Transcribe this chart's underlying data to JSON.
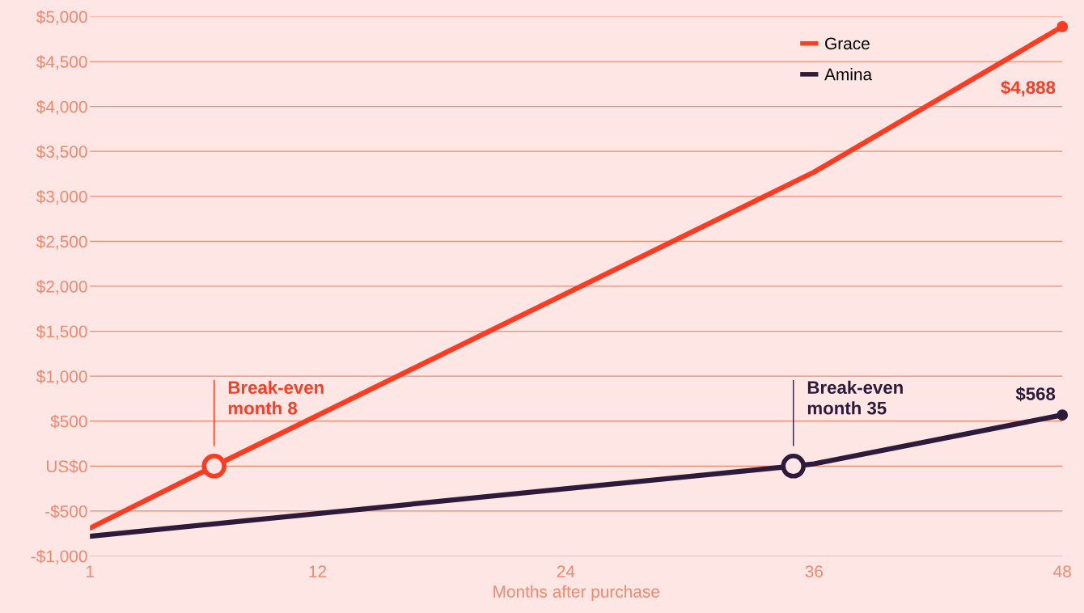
{
  "chart_data": {
    "type": "line",
    "xlabel": "Months after purchase",
    "xlim": [
      1,
      48
    ],
    "xticks": [
      1,
      12,
      24,
      36,
      48
    ],
    "ylim": [
      -1000,
      5000
    ],
    "yticks": [
      {
        "value": -1000,
        "label": "-$1,000"
      },
      {
        "value": -500,
        "label": "-$500"
      },
      {
        "value": 0,
        "label": "US$0"
      },
      {
        "value": 500,
        "label": "$500"
      },
      {
        "value": 1000,
        "label": "$1,000"
      },
      {
        "value": 1500,
        "label": "$1,500"
      },
      {
        "value": 2000,
        "label": "$2,000"
      },
      {
        "value": 2500,
        "label": "$2,500"
      },
      {
        "value": 3000,
        "label": "$3,000"
      },
      {
        "value": 3500,
        "label": "$3,500"
      },
      {
        "value": 4000,
        "label": "$4,000"
      },
      {
        "value": 4500,
        "label": "$4,500"
      },
      {
        "value": 5000,
        "label": "$5,000"
      }
    ],
    "grid": "y",
    "legend": "top right",
    "series": [
      {
        "name": "Grace",
        "color": "#ff3b21",
        "x": [
          1,
          7,
          36,
          48
        ],
        "values": [
          -690,
          0,
          3270,
          4888
        ],
        "value_labels": [
          null,
          null,
          null,
          "$4,888"
        ]
      },
      {
        "name": "Amina",
        "color": "#2e1a3a",
        "x": [
          1,
          35,
          36,
          48
        ],
        "values": [
          -780,
          0,
          25,
          568
        ],
        "value_labels": [
          null,
          null,
          null,
          "$568"
        ]
      }
    ],
    "annotations": [
      {
        "text": "Break-even\nmonth 8",
        "x": 7,
        "y": 0
      },
      {
        "text": "Break-even\nmonth 35",
        "x": 35,
        "y": 0
      }
    ]
  }
}
